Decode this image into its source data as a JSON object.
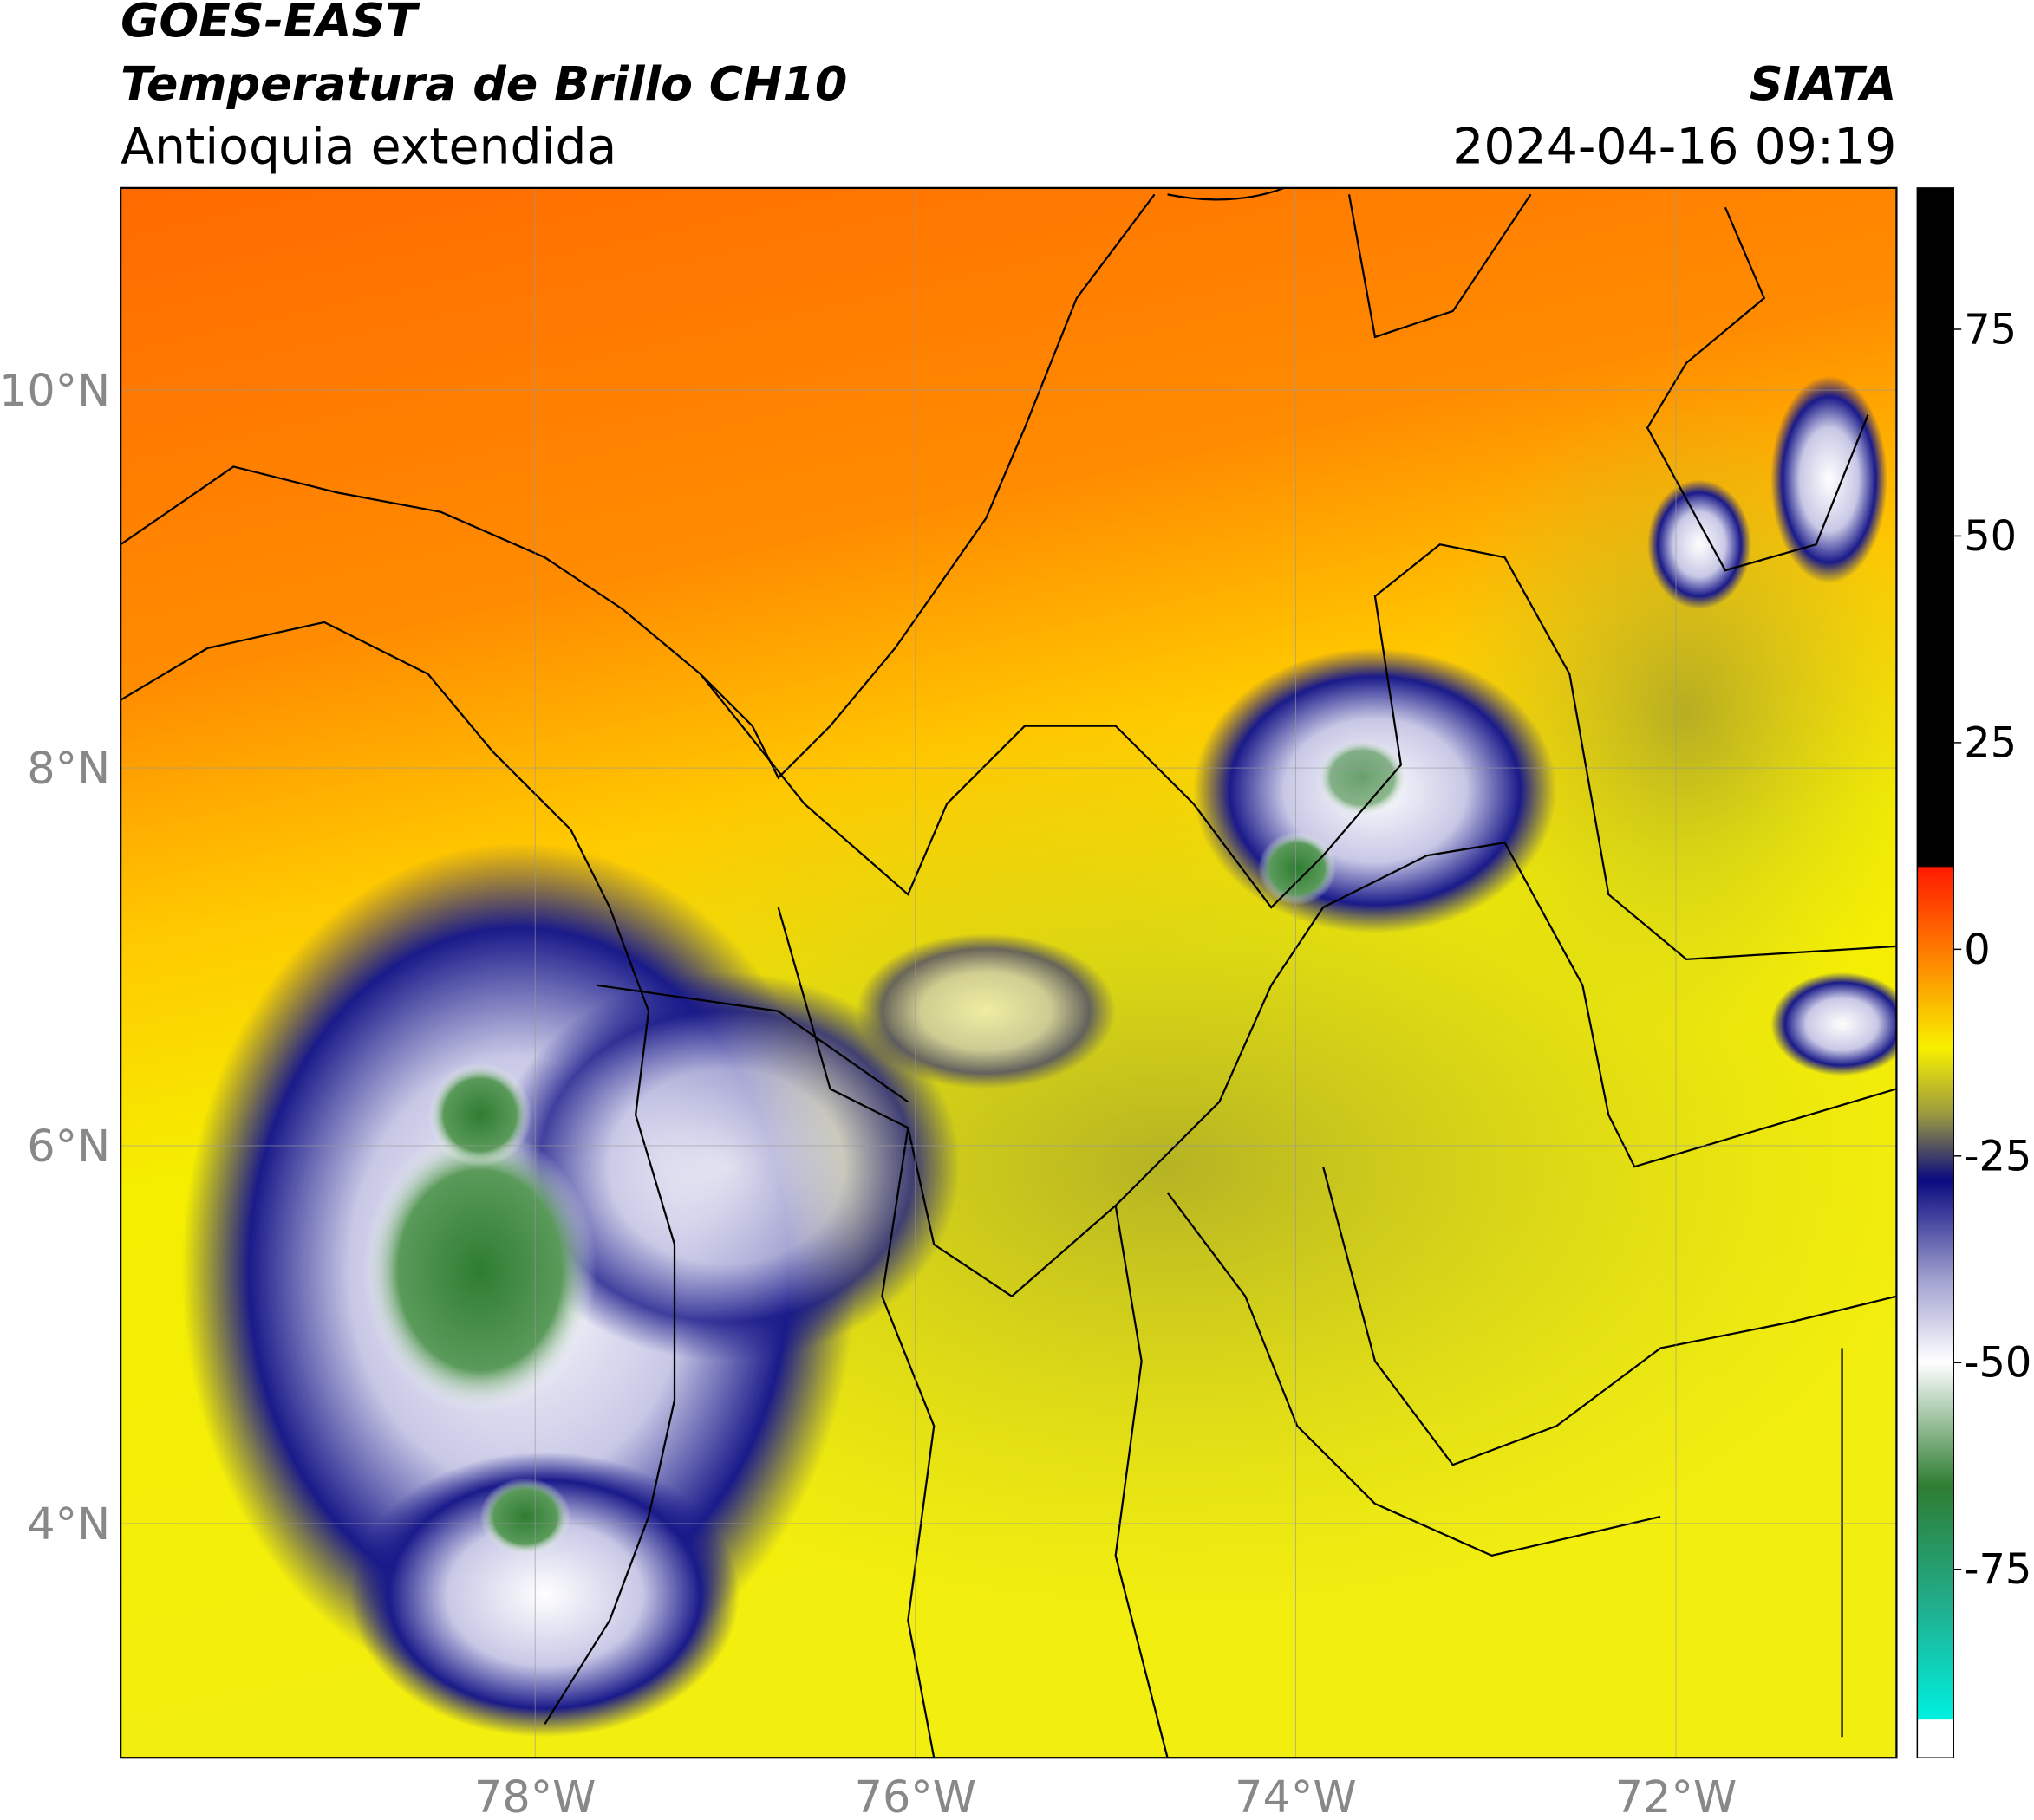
{
  "header": {
    "title": "GOES-EAST",
    "subtitle": "Temperatura de Brillo CH10",
    "region": "Antioquia extendida",
    "source": "SIATA",
    "datetime": "2024-04-16 09:19"
  },
  "map": {
    "xlim": [
      -80.18,
      -70.84
    ],
    "ylim": [
      2.76,
      11.07
    ],
    "xticks": [
      {
        "value": -78,
        "label": "78°W"
      },
      {
        "value": -76,
        "label": "76°W"
      },
      {
        "value": -74,
        "label": "74°W"
      },
      {
        "value": -72,
        "label": "72°W"
      }
    ],
    "yticks": [
      {
        "value": 4,
        "label": "4°N"
      },
      {
        "value": 6,
        "label": "6°N"
      },
      {
        "value": 8,
        "label": "8°N"
      },
      {
        "value": 10,
        "label": "10°N"
      }
    ],
    "grid": true
  },
  "colorbar": {
    "lim": [
      -97.8,
      92.1
    ],
    "ticks": [
      -75,
      -50,
      -25,
      0,
      25,
      50,
      75
    ]
  }
}
